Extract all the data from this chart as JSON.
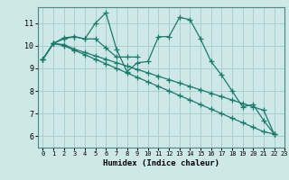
{
  "title": "",
  "xlabel": "Humidex (Indice chaleur)",
  "background_color": "#cde8e6",
  "grid_color": "#aacfcc",
  "line_color": "#1a7a6e",
  "xlim": [
    -0.5,
    23
  ],
  "ylim": [
    5.5,
    11.7
  ],
  "yticks": [
    6,
    7,
    8,
    9,
    10,
    11
  ],
  "xticks": [
    0,
    1,
    2,
    3,
    4,
    5,
    6,
    7,
    8,
    9,
    10,
    11,
    12,
    13,
    14,
    15,
    16,
    17,
    18,
    19,
    20,
    21,
    22,
    23
  ],
  "series": [
    [
      9.4,
      10.1,
      10.3,
      10.4,
      10.3,
      11.0,
      11.45,
      9.85,
      8.85,
      9.25,
      9.3,
      10.4,
      10.4,
      11.25,
      11.15,
      10.3,
      9.3,
      8.7,
      8.0,
      7.3,
      7.4,
      6.7,
      6.1
    ],
    [
      9.4,
      10.1,
      10.35,
      10.4,
      10.3,
      10.3,
      9.9,
      9.5,
      9.5,
      9.5,
      null,
      null,
      null,
      null,
      null,
      null,
      null,
      null,
      null,
      null,
      null,
      null,
      null
    ],
    [
      9.4,
      10.1,
      10.05,
      9.85,
      9.7,
      9.55,
      9.4,
      9.25,
      9.1,
      8.95,
      8.8,
      8.65,
      8.5,
      8.35,
      8.2,
      8.05,
      7.9,
      7.75,
      7.6,
      7.45,
      7.3,
      7.15,
      6.1
    ],
    [
      9.4,
      10.1,
      10.0,
      9.8,
      9.6,
      9.4,
      9.2,
      9.0,
      8.8,
      8.6,
      8.4,
      8.2,
      8.0,
      7.8,
      7.6,
      7.4,
      7.2,
      7.0,
      6.8,
      6.6,
      6.4,
      6.2,
      6.1
    ]
  ],
  "marker": "+",
  "markersize": 4,
  "linewidth": 0.9
}
